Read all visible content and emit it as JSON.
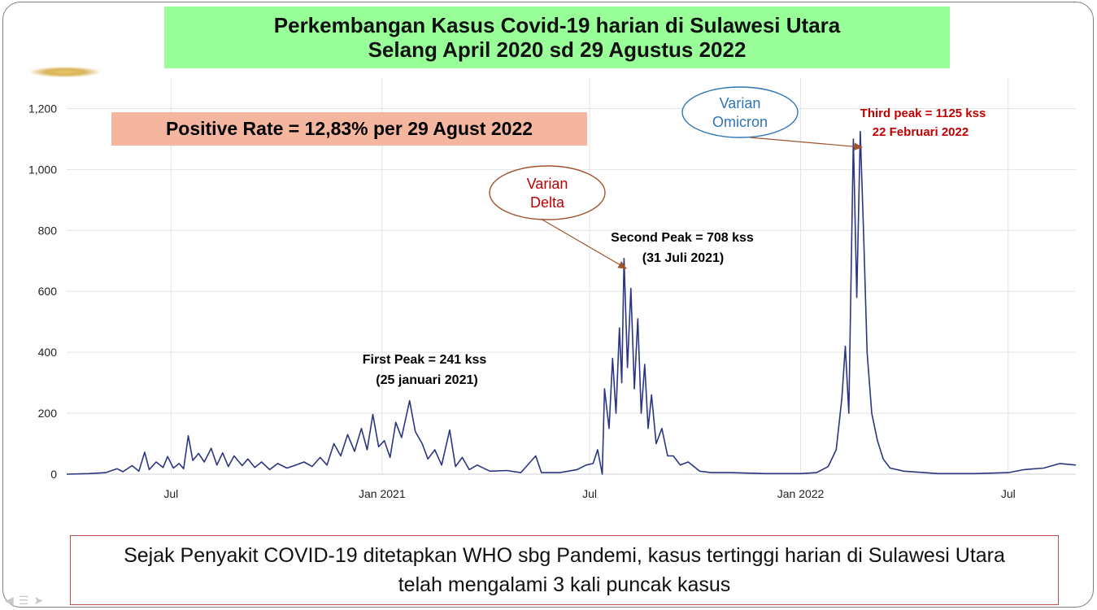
{
  "title": {
    "line1": "Perkembangan Kasus Covid-19 harian di Sulawesi Utara",
    "line2": "Selang  April 2020 sd 29 Agustus 2022"
  },
  "positive_rate": "Positive Rate  = 12,83% per 29 Agust 2022",
  "caption": {
    "line1": "Sejak Penyakit COVID-19 ditetapkan WHO sbg Pandemi, kasus tertinggi harian di Sulawesi Utara",
    "line2": "telah mengalami 3 kali puncak kasus"
  },
  "annotations": {
    "first_peak": {
      "line1": "First  Peak = 241 kss",
      "line2": "(25 januari 2021)"
    },
    "second_peak": {
      "line1": "Second Peak = 708 kss",
      "line2": "(31 Juli 2021)"
    },
    "third_peak": {
      "line1": "Third peak = 1125 kss",
      "line2": "22 Februari  2022"
    },
    "delta": {
      "line1": "Varian",
      "line2": "Delta"
    },
    "omicron": {
      "line1": "Varian",
      "line2": "Omicron"
    }
  },
  "colors": {
    "line": "#2b3580",
    "grid": "#e3e3e3",
    "title_bg": "#99ff99",
    "rate_bg": "#f4b69f",
    "peak_red": "#c00000",
    "omicron_blue": "#2e75b6",
    "delta_border": "#a0522d"
  },
  "chart_data": {
    "type": "line",
    "title": "",
    "xlabel": "",
    "ylabel": "",
    "ylim": [
      0,
      1300
    ],
    "yticks": [
      0,
      200,
      400,
      600,
      800,
      1000,
      1200
    ],
    "ytick_labels": [
      "0",
      "200",
      "400",
      "600",
      "800",
      "1,000",
      "1,200"
    ],
    "xlim": [
      "2020-04-01",
      "2022-08-29"
    ],
    "xticks": [
      {
        "date": "2020-07-01",
        "label": "Jul"
      },
      {
        "date": "2021-01-01",
        "label": "Jan 2021"
      },
      {
        "date": "2021-07-01",
        "label": "Jul"
      },
      {
        "date": "2022-01-01",
        "label": "Jan 2022"
      },
      {
        "date": "2022-07-01",
        "label": "Jul"
      }
    ],
    "grid": true,
    "series": [
      {
        "points": [
          [
            "2020-04-01",
            0
          ],
          [
            "2020-04-20",
            2
          ],
          [
            "2020-05-05",
            5
          ],
          [
            "2020-05-15",
            18
          ],
          [
            "2020-05-20",
            8
          ],
          [
            "2020-05-28",
            28
          ],
          [
            "2020-06-03",
            10
          ],
          [
            "2020-06-08",
            72
          ],
          [
            "2020-06-12",
            15
          ],
          [
            "2020-06-18",
            40
          ],
          [
            "2020-06-24",
            22
          ],
          [
            "2020-06-28",
            58
          ],
          [
            "2020-07-03",
            20
          ],
          [
            "2020-07-08",
            35
          ],
          [
            "2020-07-12",
            18
          ],
          [
            "2020-07-16",
            126
          ],
          [
            "2020-07-20",
            45
          ],
          [
            "2020-07-25",
            68
          ],
          [
            "2020-07-30",
            40
          ],
          [
            "2020-08-05",
            85
          ],
          [
            "2020-08-10",
            30
          ],
          [
            "2020-08-15",
            70
          ],
          [
            "2020-08-20",
            25
          ],
          [
            "2020-08-25",
            60
          ],
          [
            "2020-09-01",
            28
          ],
          [
            "2020-09-06",
            50
          ],
          [
            "2020-09-12",
            22
          ],
          [
            "2020-09-18",
            40
          ],
          [
            "2020-09-25",
            15
          ],
          [
            "2020-10-02",
            35
          ],
          [
            "2020-10-10",
            20
          ],
          [
            "2020-10-18",
            30
          ],
          [
            "2020-10-25",
            40
          ],
          [
            "2020-11-01",
            25
          ],
          [
            "2020-11-08",
            55
          ],
          [
            "2020-11-14",
            30
          ],
          [
            "2020-11-20",
            100
          ],
          [
            "2020-11-26",
            60
          ],
          [
            "2020-12-02",
            130
          ],
          [
            "2020-12-08",
            75
          ],
          [
            "2020-12-14",
            150
          ],
          [
            "2020-12-19",
            80
          ],
          [
            "2020-12-24",
            196
          ],
          [
            "2020-12-29",
            90
          ],
          [
            "2021-01-03",
            110
          ],
          [
            "2021-01-08",
            55
          ],
          [
            "2021-01-13",
            170
          ],
          [
            "2021-01-18",
            120
          ],
          [
            "2021-01-25",
            241
          ],
          [
            "2021-01-30",
            140
          ],
          [
            "2021-02-05",
            100
          ],
          [
            "2021-02-10",
            50
          ],
          [
            "2021-02-16",
            80
          ],
          [
            "2021-02-22",
            30
          ],
          [
            "2021-03-01",
            145
          ],
          [
            "2021-03-06",
            25
          ],
          [
            "2021-03-12",
            55
          ],
          [
            "2021-03-18",
            15
          ],
          [
            "2021-03-25",
            30
          ],
          [
            "2021-04-05",
            10
          ],
          [
            "2021-04-20",
            12
          ],
          [
            "2021-05-02",
            5
          ],
          [
            "2021-05-15",
            60
          ],
          [
            "2021-05-20",
            5
          ],
          [
            "2021-06-05",
            5
          ],
          [
            "2021-06-20",
            15
          ],
          [
            "2021-06-28",
            30
          ],
          [
            "2021-07-04",
            35
          ],
          [
            "2021-07-08",
            80
          ],
          [
            "2021-07-12",
            0
          ],
          [
            "2021-07-14",
            280
          ],
          [
            "2021-07-18",
            150
          ],
          [
            "2021-07-21",
            380
          ],
          [
            "2021-07-24",
            200
          ],
          [
            "2021-07-27",
            480
          ],
          [
            "2021-07-29",
            300
          ],
          [
            "2021-07-31",
            708
          ],
          [
            "2021-08-03",
            350
          ],
          [
            "2021-08-06",
            610
          ],
          [
            "2021-08-09",
            280
          ],
          [
            "2021-08-12",
            510
          ],
          [
            "2021-08-15",
            200
          ],
          [
            "2021-08-18",
            360
          ],
          [
            "2021-08-21",
            150
          ],
          [
            "2021-08-24",
            260
          ],
          [
            "2021-08-28",
            100
          ],
          [
            "2021-09-02",
            150
          ],
          [
            "2021-09-07",
            60
          ],
          [
            "2021-09-12",
            60
          ],
          [
            "2021-09-18",
            30
          ],
          [
            "2021-09-25",
            40
          ],
          [
            "2021-10-05",
            10
          ],
          [
            "2021-10-15",
            5
          ],
          [
            "2021-11-01",
            5
          ],
          [
            "2021-12-01",
            2
          ],
          [
            "2022-01-01",
            2
          ],
          [
            "2022-01-15",
            5
          ],
          [
            "2022-01-25",
            25
          ],
          [
            "2022-02-01",
            80
          ],
          [
            "2022-02-06",
            250
          ],
          [
            "2022-02-09",
            420
          ],
          [
            "2022-02-12",
            200
          ],
          [
            "2022-02-16",
            1100
          ],
          [
            "2022-02-19",
            580
          ],
          [
            "2022-02-22",
            1125
          ],
          [
            "2022-02-25",
            780
          ],
          [
            "2022-02-28",
            400
          ],
          [
            "2022-03-04",
            200
          ],
          [
            "2022-03-09",
            110
          ],
          [
            "2022-03-14",
            50
          ],
          [
            "2022-03-20",
            20
          ],
          [
            "2022-04-01",
            10
          ],
          [
            "2022-05-01",
            2
          ],
          [
            "2022-06-01",
            2
          ],
          [
            "2022-07-01",
            5
          ],
          [
            "2022-07-15",
            15
          ],
          [
            "2022-08-01",
            20
          ],
          [
            "2022-08-15",
            35
          ],
          [
            "2022-08-29",
            30
          ]
        ]
      }
    ]
  }
}
